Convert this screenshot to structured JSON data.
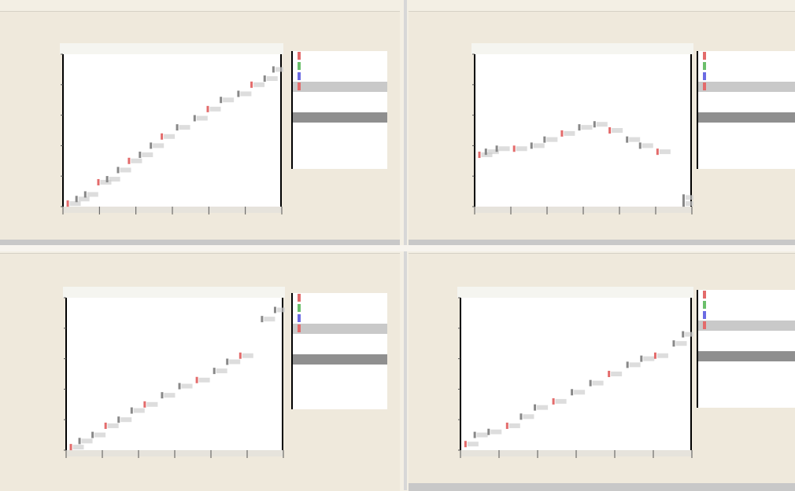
{
  "panels": [
    {
      "title": "",
      "subtitle": "",
      "xlabel": "",
      "ylabel": "",
      "legend": [
        "",
        "",
        "",
        "",
        "",
        "",
        "",
        "",
        "",
        ""
      ]
    },
    {
      "title": "",
      "subtitle": "",
      "xlabel": "",
      "ylabel": "",
      "legend": [
        "",
        "",
        "",
        "",
        "",
        "",
        "",
        "",
        "",
        ""
      ]
    },
    {
      "title": "",
      "subtitle": "",
      "xlabel": "",
      "ylabel": "",
      "legend": [
        "",
        "",
        "",
        "",
        "",
        "",
        "",
        "",
        "",
        ""
      ]
    },
    {
      "title": "",
      "subtitle": "",
      "xlabel": "",
      "ylabel": "",
      "legend": [
        "",
        "",
        "",
        "",
        "",
        "",
        "",
        "",
        "",
        ""
      ]
    }
  ],
  "colors": {
    "series_red": "#e36b6b",
    "series_blue": "#6b6be3",
    "series_green": "#6bbf6b",
    "axis": "#000000",
    "panel_bg": "#efe9dc",
    "plot_bg": "#ffffff"
  },
  "chart_data": [
    {
      "type": "scatter",
      "title": "",
      "xlabel": "",
      "ylabel": "",
      "xlim": [
        0,
        1
      ],
      "ylim": [
        0,
        1
      ],
      "series": [
        {
          "points": [
            [
              0.02,
              0.02
            ],
            [
              0.06,
              0.05
            ],
            [
              0.1,
              0.08
            ],
            [
              0.16,
              0.16
            ],
            [
              0.2,
              0.18
            ],
            [
              0.25,
              0.24
            ],
            [
              0.3,
              0.3
            ],
            [
              0.35,
              0.34
            ],
            [
              0.4,
              0.4
            ],
            [
              0.45,
              0.46
            ],
            [
              0.52,
              0.52
            ],
            [
              0.6,
              0.58
            ],
            [
              0.66,
              0.64
            ],
            [
              0.72,
              0.7
            ],
            [
              0.8,
              0.74
            ],
            [
              0.86,
              0.8
            ],
            [
              0.92,
              0.84
            ],
            [
              0.96,
              0.9
            ]
          ]
        }
      ]
    },
    {
      "type": "scatter",
      "title": "",
      "xlabel": "",
      "ylabel": "",
      "xlim": [
        0,
        1
      ],
      "ylim": [
        0,
        1
      ],
      "series": [
        {
          "points": [
            [
              0.02,
              0.34
            ],
            [
              0.05,
              0.36
            ],
            [
              0.1,
              0.38
            ],
            [
              0.18,
              0.38
            ],
            [
              0.26,
              0.4
            ],
            [
              0.32,
              0.44
            ],
            [
              0.4,
              0.48
            ],
            [
              0.48,
              0.52
            ],
            [
              0.55,
              0.54
            ],
            [
              0.62,
              0.5
            ],
            [
              0.7,
              0.44
            ],
            [
              0.76,
              0.4
            ],
            [
              0.84,
              0.36
            ],
            [
              0.96,
              0.06
            ],
            [
              0.96,
              0.02
            ]
          ]
        }
      ]
    },
    {
      "type": "scatter",
      "title": "",
      "xlabel": "",
      "ylabel": "",
      "xlim": [
        0,
        1
      ],
      "ylim": [
        0,
        1
      ],
      "series": [
        {
          "points": [
            [
              0.02,
              0.02
            ],
            [
              0.06,
              0.06
            ],
            [
              0.12,
              0.1
            ],
            [
              0.18,
              0.16
            ],
            [
              0.24,
              0.2
            ],
            [
              0.3,
              0.26
            ],
            [
              0.36,
              0.3
            ],
            [
              0.44,
              0.36
            ],
            [
              0.52,
              0.42
            ],
            [
              0.6,
              0.46
            ],
            [
              0.68,
              0.52
            ],
            [
              0.74,
              0.58
            ],
            [
              0.8,
              0.62
            ],
            [
              0.9,
              0.86
            ],
            [
              0.96,
              0.92
            ]
          ]
        }
      ]
    },
    {
      "type": "scatter",
      "title": "",
      "xlabel": "",
      "ylabel": "",
      "xlim": [
        0,
        1
      ],
      "ylim": [
        0,
        1
      ],
      "series": [
        {
          "points": [
            [
              0.02,
              0.04
            ],
            [
              0.06,
              0.1
            ],
            [
              0.12,
              0.12
            ],
            [
              0.2,
              0.16
            ],
            [
              0.26,
              0.22
            ],
            [
              0.32,
              0.28
            ],
            [
              0.4,
              0.32
            ],
            [
              0.48,
              0.38
            ],
            [
              0.56,
              0.44
            ],
            [
              0.64,
              0.5
            ],
            [
              0.72,
              0.56
            ],
            [
              0.78,
              0.6
            ],
            [
              0.84,
              0.62
            ],
            [
              0.92,
              0.7
            ],
            [
              0.96,
              0.76
            ]
          ]
        }
      ]
    }
  ]
}
